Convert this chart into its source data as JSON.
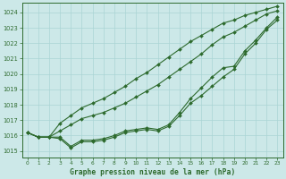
{
  "background_color": "#cce8e8",
  "grid_color": "#aad4d4",
  "line_color": "#2d6a2d",
  "title": "Graphe pression niveau de la mer (hPa)",
  "xlim": [
    -0.5,
    23.5
  ],
  "ylim": [
    1014.6,
    1024.6
  ],
  "yticks": [
    1015,
    1016,
    1017,
    1018,
    1019,
    1020,
    1021,
    1022,
    1023,
    1024
  ],
  "xticks": [
    0,
    1,
    2,
    3,
    4,
    5,
    6,
    7,
    8,
    9,
    10,
    11,
    12,
    13,
    14,
    15,
    16,
    17,
    18,
    19,
    20,
    21,
    22,
    23
  ],
  "series": [
    [
      1016.2,
      1015.9,
      1015.9,
      1015.8,
      1015.2,
      1015.6,
      1015.6,
      1015.7,
      1015.9,
      1016.2,
      1016.3,
      1016.4,
      1016.3,
      1016.6,
      1017.3,
      1018.1,
      1018.6,
      1019.2,
      1019.8,
      1020.3,
      1021.3,
      1022.0,
      1022.9,
      1023.5
    ],
    [
      1016.2,
      1015.9,
      1015.9,
      1015.9,
      1015.3,
      1015.7,
      1015.7,
      1015.8,
      1016.0,
      1016.3,
      1016.4,
      1016.5,
      1016.4,
      1016.7,
      1017.5,
      1018.4,
      1019.1,
      1019.8,
      1020.4,
      1020.5,
      1021.5,
      1022.2,
      1023.0,
      1023.7
    ],
    [
      1016.2,
      1015.9,
      1015.9,
      1016.3,
      1016.7,
      1017.1,
      1017.3,
      1017.5,
      1017.8,
      1018.1,
      1018.5,
      1018.9,
      1019.3,
      1019.8,
      1020.3,
      1020.8,
      1021.3,
      1021.9,
      1022.4,
      1022.7,
      1023.1,
      1023.5,
      1023.9,
      1024.1
    ],
    [
      1016.2,
      1015.9,
      1015.9,
      1016.8,
      1017.3,
      1017.8,
      1018.1,
      1018.4,
      1018.8,
      1019.2,
      1019.7,
      1020.1,
      1020.6,
      1021.1,
      1021.6,
      1022.1,
      1022.5,
      1022.9,
      1023.3,
      1023.5,
      1023.8,
      1024.0,
      1024.2,
      1024.4
    ]
  ]
}
